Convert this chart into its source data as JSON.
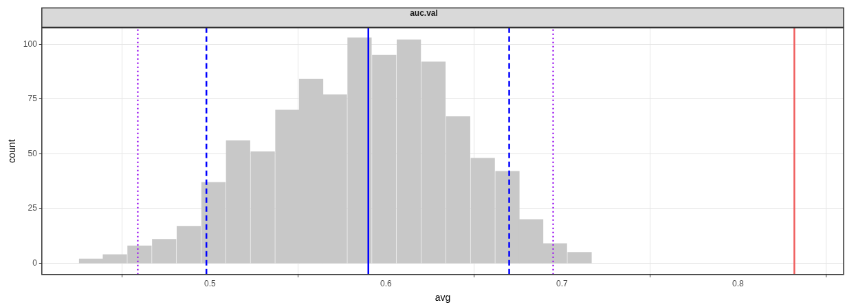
{
  "chart_data": {
    "type": "histogram",
    "title": "auc.val",
    "xlabel": "avg",
    "ylabel": "count",
    "bins": [
      0.426,
      0.439,
      0.453,
      0.467,
      0.481,
      0.495,
      0.509,
      0.523,
      0.537,
      0.551,
      0.564,
      0.578,
      0.592,
      0.606,
      0.62,
      0.634,
      0.648,
      0.662,
      0.676,
      0.689,
      0.703,
      0.717
    ],
    "values": [
      2,
      4,
      8,
      11,
      17,
      37,
      56,
      51,
      70,
      84,
      77,
      103,
      95,
      102,
      92,
      67,
      48,
      42,
      20,
      9,
      5
    ],
    "color": "#c8c8c8",
    "xlim": [
      0.4045,
      0.86
    ],
    "xticks": [
      0.5,
      0.6,
      0.7,
      0.8
    ],
    "ylim": [
      -5.1,
      107.5
    ],
    "yticks": [
      0,
      25,
      50,
      75,
      100
    ],
    "grid": true,
    "ref_lines": [
      {
        "axis": "x",
        "value": 0.459,
        "color": "#a020f0",
        "line_style": "dotted"
      },
      {
        "axis": "x",
        "value": 0.498,
        "color": "#0000ff",
        "line_style": "dashed"
      },
      {
        "axis": "x",
        "value": 0.59,
        "color": "#0000ff",
        "line_style": "solid"
      },
      {
        "axis": "x",
        "value": 0.67,
        "color": "#0000ff",
        "line_style": "dashed"
      },
      {
        "axis": "x",
        "value": 0.695,
        "color": "#a020f0",
        "line_style": "dotted"
      },
      {
        "axis": "x",
        "value": 0.832,
        "color": "#f06060",
        "line_style": "solid"
      }
    ]
  }
}
